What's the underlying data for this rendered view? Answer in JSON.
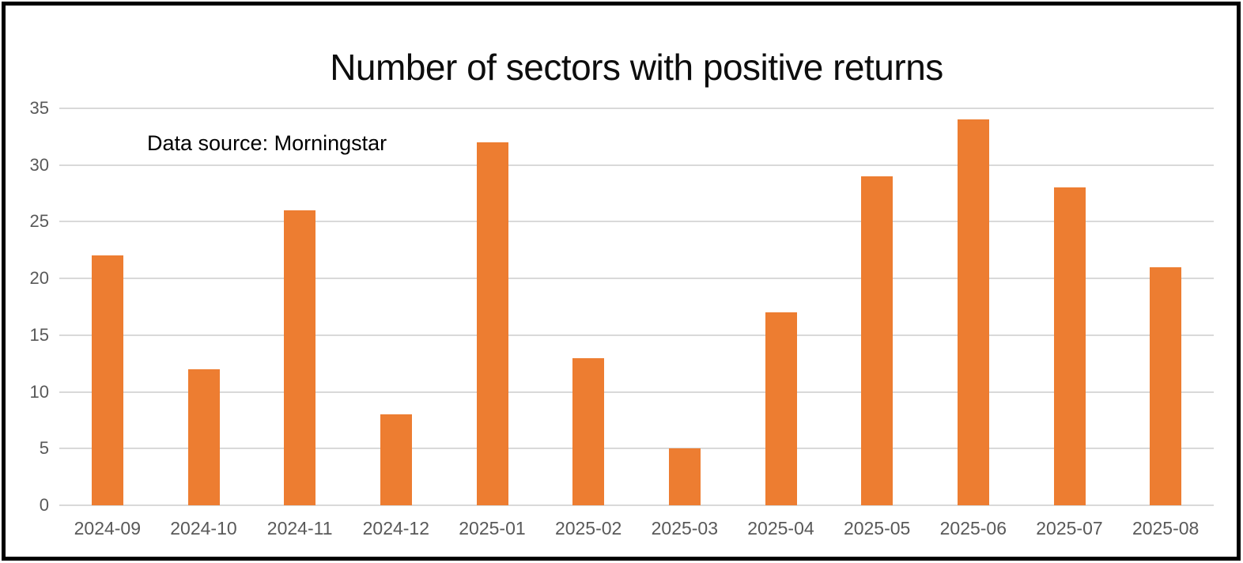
{
  "chart_data": {
    "type": "bar",
    "title": "Number of sectors with positive returns",
    "annotation": "Data source: Morningstar",
    "categories": [
      "2024-09",
      "2024-10",
      "2024-11",
      "2024-12",
      "2025-01",
      "2025-02",
      "2025-03",
      "2025-04",
      "2025-05",
      "2025-06",
      "2025-07",
      "2025-08"
    ],
    "values": [
      22,
      12,
      26,
      8,
      32,
      13,
      5,
      17,
      29,
      34,
      28,
      21
    ],
    "xlabel": "",
    "ylabel": "",
    "ylim": [
      0,
      35
    ],
    "yticks": [
      0,
      5,
      10,
      15,
      20,
      25,
      30,
      35
    ],
    "grid": true,
    "legend": "none",
    "colors": {
      "bar": "#ED7D31",
      "gridline": "#D9D9D9",
      "axis_labels": "#595959",
      "title": "#0D0D0D",
      "annotation": "#000000",
      "frame_border": "#000000",
      "background": "#FFFFFF"
    }
  }
}
